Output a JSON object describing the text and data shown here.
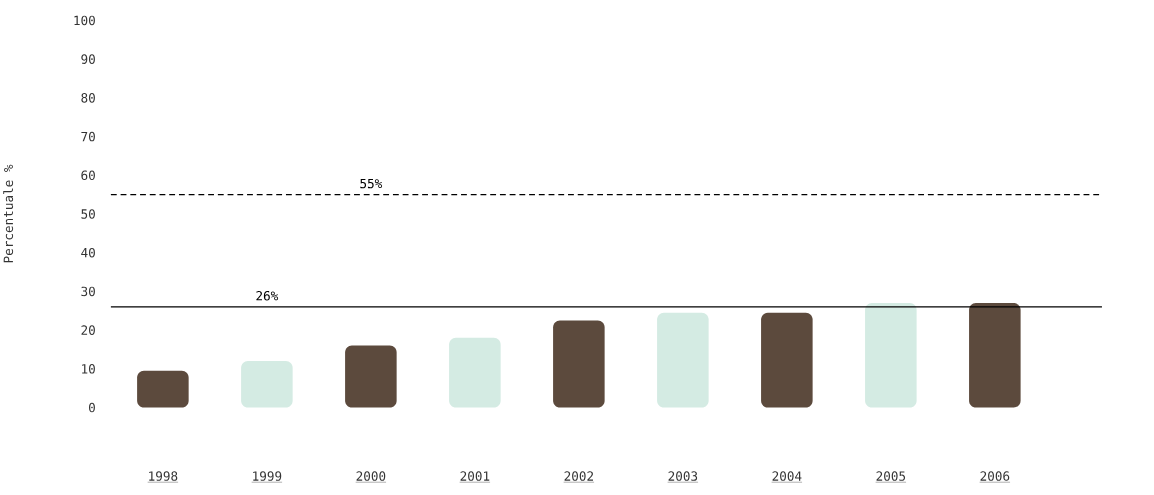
{
  "chart_data": {
    "type": "bar",
    "ylabel": "Percentuale %",
    "categories": [
      "1998",
      "1999",
      "2000",
      "2001",
      "2002",
      "2003",
      "2004",
      "2005",
      "2006"
    ],
    "values": [
      9.5,
      12,
      16,
      18,
      22.5,
      24.5,
      24.5,
      27,
      27
    ],
    "colors": [
      "#5c4a3d",
      "#d4ebe3",
      "#5c4a3d",
      "#d4ebe3",
      "#5c4a3d",
      "#d4ebe3",
      "#5c4a3d",
      "#d4ebe3",
      "#5c4a3d"
    ],
    "ylim": [
      0,
      100
    ],
    "yticks": [
      0,
      10,
      20,
      30,
      40,
      50,
      60,
      70,
      80,
      90,
      100
    ],
    "ref_lines": [
      {
        "axis": "y",
        "value": 55,
        "label": "55%",
        "line_style": "dashed",
        "color": "#000000"
      },
      {
        "axis": "y",
        "value": 26,
        "label": "26%",
        "line_style": "solid",
        "color": "#000000"
      }
    ]
  }
}
